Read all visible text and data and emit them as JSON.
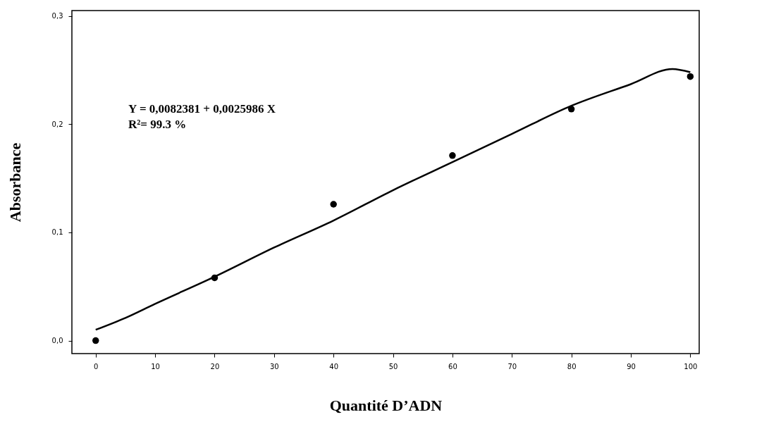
{
  "chart_data": {
    "type": "scatter",
    "xlabel": "Quantité D’ADN",
    "ylabel": "Absorbance",
    "annotations": [
      "Y = 0,0082381 + 0,0025986 X",
      "R²= 99.3 %"
    ],
    "series": [
      {
        "color": "#000000",
        "marker": "circle",
        "x": [
          0,
          20,
          40,
          60,
          80,
          100
        ],
        "values": [
          0.0,
          0.058,
          0.126,
          0.171,
          0.214,
          0.244
        ]
      },
      {
        "type": "line",
        "marker": "none",
        "line_style": "solid",
        "color": "#000000",
        "x": [
          0,
          5,
          10,
          20,
          30,
          40,
          50,
          60,
          70,
          80,
          90,
          97,
          100
        ],
        "values": [
          0.01,
          0.021,
          0.034,
          0.059,
          0.086,
          0.111,
          0.139,
          0.165,
          0.191,
          0.217,
          0.237,
          0.251,
          0.248
        ]
      }
    ],
    "xlim": [
      -4,
      101.5
    ],
    "ylim": [
      -0.012,
      0.305
    ],
    "xticks": [
      0,
      10,
      20,
      30,
      40,
      50,
      60,
      70,
      80,
      90,
      100
    ],
    "yticks": [
      {
        "value": 0,
        "label": "0,0"
      },
      {
        "value": 0.1,
        "label": "0,1"
      },
      {
        "value": 0.2,
        "label": "0,2"
      },
      {
        "value": 0.3,
        "label": "0,3"
      }
    ],
    "grid": false
  }
}
